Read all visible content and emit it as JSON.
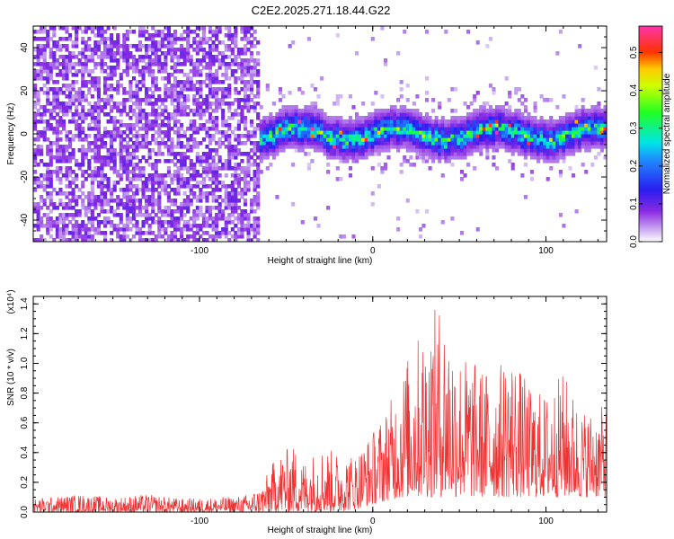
{
  "title": "C2E2.2025.271.18.44.G22",
  "colors": {
    "snr_line": "#ee3333",
    "axis": "#000000",
    "background": "#ffffff"
  },
  "chart_data": [
    {
      "type": "heatmap",
      "name": "spectrogram",
      "xlabel": "Height of straight line (km)",
      "ylabel": "Frequency (Hz)",
      "xlim": [
        -196,
        135
      ],
      "ylim": [
        -50,
        50
      ],
      "x_ticks": [
        -100,
        0,
        100
      ],
      "y_ticks": [
        -40,
        -20,
        0,
        20,
        40
      ],
      "colorbar": {
        "label": "Normalized spectral amplitude",
        "range": [
          0.0,
          0.57
        ],
        "ticks": [
          0.0,
          0.1,
          0.2,
          0.3,
          0.4,
          0.5
        ],
        "colormap": "rainbow (white-violet-blue-cyan-green-yellow-red-magenta)"
      },
      "regions": [
        {
          "x_range": [
            -196,
            -65
          ],
          "freq_range": [
            -50,
            50
          ],
          "description": "broadband noise",
          "amplitude": 0.08
        },
        {
          "x_range": [
            -65,
            135
          ],
          "freq_center": 0,
          "freq_halfwidth": 10,
          "description": "narrowband signal",
          "amplitude_peak": 0.55
        }
      ]
    },
    {
      "type": "line",
      "name": "snr",
      "xlabel": "Height of straight line (km)",
      "ylabel": "SNR (10 * v/v)",
      "y_multiplier": "(x10⁴)",
      "xlim": [
        -196,
        135
      ],
      "ylim": [
        0,
        1.45
      ],
      "x_ticks": [
        -100,
        0,
        100
      ],
      "y_ticks": [
        0.0,
        0.2,
        0.4,
        0.6,
        0.8,
        1.0,
        1.2,
        1.4
      ],
      "envelope": {
        "x": [
          -196,
          -170,
          -150,
          -130,
          -110,
          -90,
          -75,
          -65,
          -55,
          -45,
          -40,
          -30,
          -20,
          -10,
          0,
          10,
          20,
          30,
          40,
          50,
          60,
          70,
          80,
          90,
          100,
          110,
          120,
          130,
          135
        ],
        "upper": [
          0.09,
          0.12,
          0.1,
          0.12,
          0.09,
          0.1,
          0.11,
          0.16,
          0.4,
          0.45,
          0.35,
          0.45,
          0.4,
          0.4,
          0.55,
          0.75,
          1.05,
          1.28,
          1.43,
          1.1,
          1.0,
          0.95,
          1.1,
          0.85,
          0.8,
          0.95,
          0.7,
          0.7,
          0.72
        ],
        "lower": [
          0.0,
          0.0,
          0.0,
          0.0,
          0.0,
          0.0,
          0.0,
          0.0,
          0.0,
          0.0,
          0.0,
          0.0,
          0.0,
          0.02,
          0.05,
          0.08,
          0.1,
          0.1,
          0.1,
          0.1,
          0.1,
          0.1,
          0.1,
          0.1,
          0.1,
          0.1,
          0.1,
          0.1,
          0.1
        ]
      }
    }
  ]
}
